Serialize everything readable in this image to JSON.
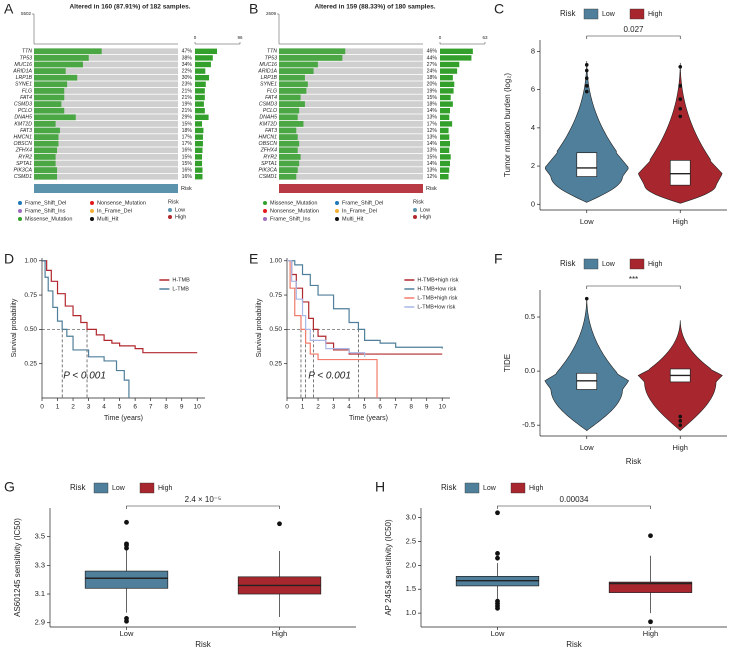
{
  "chart_data": [
    {
      "type": "oncoplot",
      "panel": "A",
      "title": "Altered in 160 (87.91%) of 182 samples.",
      "tmb_ylim": [
        0,
        5502
      ],
      "tmb_yticks": [
        5502
      ],
      "freq_xlim": [
        0,
        96
      ],
      "freq_xticks": [
        0,
        96
      ],
      "genes": [
        "TTN",
        "TP53",
        "MUC16",
        "ARID1A",
        "LRP1B",
        "SYNE1",
        "FLG",
        "FAT4",
        "CSMD3",
        "PCLO",
        "DNAH5",
        "KMT2D",
        "FAT3",
        "HMCN1",
        "OBSCN",
        "ZFHX4",
        "RYR2",
        "SPTA1",
        "PIK3CA",
        "CSMD1"
      ],
      "values": [
        47,
        38,
        34,
        22,
        30,
        23,
        21,
        21,
        19,
        21,
        29,
        15,
        18,
        17,
        17,
        16,
        15,
        15,
        16,
        16
      ],
      "value_labels": [
        "47%",
        "38%",
        "34%",
        "22%",
        "30%",
        "23%",
        "21%",
        "21%",
        "19%",
        "21%",
        "29%",
        "15%",
        "18%",
        "17%",
        "17%",
        "16%",
        "15%",
        "15%",
        "16%",
        "16%"
      ],
      "bar_color": "#33a02c",
      "row_color": "#cfcfcf",
      "annotation_label": "Risk",
      "annotation_color": "#5b93ad",
      "mutation_types": [
        {
          "name": "Frame_Shift_Del",
          "color": "#1f78b4"
        },
        {
          "name": "Frame_Shift_Ins",
          "color": "#9e6cc0"
        },
        {
          "name": "Missense_Mutation",
          "color": "#33a02c"
        },
        {
          "name": "Nonsense_Mutation",
          "color": "#e31a1c"
        },
        {
          "name": "In_Frame_Del",
          "color": "#f2b134"
        },
        {
          "name": "Multi_Hit",
          "color": "#111111"
        }
      ],
      "risk_legend": {
        "title": "Risk",
        "groups": [
          {
            "name": "Low",
            "color": "#5b93ad"
          },
          {
            "name": "High",
            "color": "#b0282e"
          }
        ]
      }
    },
    {
      "type": "oncoplot",
      "panel": "B",
      "title": "Altered in 159 (88.33%) of 180 samples.",
      "tmb_ylim": [
        0,
        2609
      ],
      "tmb_yticks": [
        2609
      ],
      "freq_xlim": [
        0,
        63
      ],
      "freq_xticks": [
        0,
        63
      ],
      "genes": [
        "TTN",
        "TP53",
        "MUC16",
        "ARID1A",
        "LRP1B",
        "SYNE1",
        "FLG",
        "FAT4",
        "CSMD3",
        "PCLO",
        "DNAH5",
        "KMT2D",
        "FAT3",
        "HMCN1",
        "OBSCN",
        "ZFHX4",
        "RYR2",
        "SPTA1",
        "PIK3CA",
        "CSMD1"
      ],
      "values": [
        46,
        44,
        27,
        24,
        18,
        20,
        19,
        15,
        18,
        14,
        13,
        17,
        12,
        13,
        14,
        13,
        15,
        14,
        13,
        12
      ],
      "value_labels": [
        "46%",
        "44%",
        "27%",
        "24%",
        "18%",
        "20%",
        "19%",
        "15%",
        "18%",
        "14%",
        "13%",
        "17%",
        "12%",
        "13%",
        "14%",
        "13%",
        "15%",
        "14%",
        "13%",
        "12%"
      ],
      "bar_color": "#33a02c",
      "row_color": "#cfcfcf",
      "annotation_label": "Risk",
      "annotation_color": "#b83a45",
      "mutation_types": [
        {
          "name": "Missense_Mutation",
          "color": "#33a02c"
        },
        {
          "name": "Nonsense_Mutation",
          "color": "#e31a1c"
        },
        {
          "name": "Frame_Shift_Ins",
          "color": "#9e6cc0"
        },
        {
          "name": "Frame_Shift_Del",
          "color": "#1f78b4"
        },
        {
          "name": "In_Frame_Del",
          "color": "#f2b134"
        },
        {
          "name": "Multi_Hit",
          "color": "#111111"
        }
      ],
      "risk_legend": {
        "title": "Risk",
        "groups": [
          {
            "name": "Low",
            "color": "#5b93ad"
          },
          {
            "name": "High",
            "color": "#b0282e"
          }
        ]
      }
    },
    {
      "type": "violin",
      "panel": "C",
      "legend_title": "Risk",
      "ylabel": "Tumor mutation burden (log₂)",
      "categories": [
        "Low",
        "High"
      ],
      "ylim": [
        -0.3,
        8.6
      ],
      "yticks": [
        0,
        2,
        4,
        6,
        8
      ],
      "pvalue": "0.027",
      "series": [
        {
          "name": "Low",
          "color": "#4f7f9a",
          "stats": {
            "min": 0.1,
            "q1": 1.45,
            "median": 1.9,
            "q3": 2.7,
            "max": 7.5,
            "outliers": [
              5.9,
              6.2,
              6.6,
              7.0,
              7.3
            ]
          }
        },
        {
          "name": "High",
          "color": "#a8272e",
          "stats": {
            "min": 0.05,
            "q1": 1.0,
            "median": 1.6,
            "q3": 2.3,
            "max": 7.4,
            "outliers": [
              4.6,
              5.0,
              5.5,
              6.2,
              7.2
            ]
          }
        }
      ]
    },
    {
      "type": "survival",
      "panel": "D",
      "xlabel": "Time (years)",
      "ylabel": "Survival probability",
      "xlim": [
        0,
        10.5
      ],
      "xticks": [
        0,
        1,
        2,
        3,
        4,
        5,
        6,
        7,
        8,
        9,
        10
      ],
      "ylim": [
        0,
        1.02
      ],
      "yticks": [
        0.25,
        {
          "value": 0.5,
          "label": "0.50"
        },
        0.75,
        {
          "value": 1,
          "label": "1.00"
        }
      ],
      "annotation": "P < 0.001",
      "median_level": 0.5,
      "series": [
        {
          "name": "H-TMB",
          "color": "#b0282e",
          "median": 2.9,
          "x": [
            0,
            0.3,
            0.6,
            1,
            1.5,
            2,
            2.5,
            2.9,
            3.5,
            4,
            4.5,
            5,
            6,
            6.5,
            10
          ],
          "values": [
            1,
            0.93,
            0.85,
            0.76,
            0.67,
            0.6,
            0.55,
            0.5,
            0.46,
            0.42,
            0.4,
            0.38,
            0.36,
            0.33,
            0.33
          ]
        },
        {
          "name": "L-TMB",
          "color": "#4f7f9a",
          "median": 1.3,
          "x": [
            0,
            0.2,
            0.4,
            0.7,
            1,
            1.3,
            1.6,
            2,
            3,
            4,
            4.8,
            5.3,
            5.6
          ],
          "values": [
            1,
            0.88,
            0.78,
            0.66,
            0.56,
            0.5,
            0.45,
            0.35,
            0.3,
            0.27,
            0.2,
            0.13,
            0
          ]
        }
      ]
    },
    {
      "type": "survival",
      "panel": "E",
      "xlabel": "Time (years)",
      "ylabel": "Survival probability",
      "xlim": [
        0,
        10.5
      ],
      "xticks": [
        0,
        1,
        2,
        3,
        4,
        5,
        6,
        7,
        8,
        9,
        10
      ],
      "ylim": [
        0,
        1.02
      ],
      "yticks": [
        0.25,
        {
          "value": 0.5,
          "label": "0.50"
        },
        0.75,
        {
          "value": 1,
          "label": "1.00"
        }
      ],
      "annotation": "P < 0.001",
      "median_level": 0.5,
      "series": [
        {
          "name": "H-TMB+high risk",
          "color": "#b0282e",
          "median": 1.7,
          "x": [
            0,
            0.3,
            0.6,
            1,
            1.4,
            1.7,
            2,
            2.5,
            3,
            4,
            10
          ],
          "values": [
            1,
            0.9,
            0.8,
            0.7,
            0.58,
            0.5,
            0.45,
            0.4,
            0.35,
            0.32,
            0.32
          ]
        },
        {
          "name": "H-TMB+low risk",
          "color": "#4f7f9a",
          "median": 4.6,
          "x": [
            0,
            0.5,
            1,
            1.5,
            2,
            3,
            4,
            4.6,
            5,
            6,
            7,
            10
          ],
          "values": [
            1,
            0.97,
            0.9,
            0.82,
            0.75,
            0.65,
            0.55,
            0.5,
            0.42,
            0.4,
            0.37,
            0.36
          ]
        },
        {
          "name": "L-TMB+high risk",
          "color": "#f27b6b",
          "median": 0.9,
          "x": [
            0,
            0.2,
            0.5,
            0.9,
            1.2,
            1.5,
            2,
            4,
            5.6,
            5.8
          ],
          "values": [
            1,
            0.8,
            0.6,
            0.5,
            0.4,
            0.32,
            0.28,
            0.28,
            0.28,
            0
          ]
        },
        {
          "name": "L-TMB+low risk",
          "color": "#a9b8e6",
          "median": 1.2,
          "x": [
            0,
            0.3,
            0.6,
            1,
            1.2,
            1.5,
            2.5,
            4,
            5
          ],
          "values": [
            1,
            0.85,
            0.72,
            0.6,
            0.5,
            0.42,
            0.36,
            0.33,
            0.3
          ]
        }
      ]
    },
    {
      "type": "violin",
      "panel": "F",
      "legend_title": "Risk",
      "ylabel": "TIDE",
      "xlabel": "Risk",
      "categories": [
        "Low",
        "High"
      ],
      "ylim": [
        -0.6,
        0.75
      ],
      "yticks": [
        -0.5,
        {
          "value": 0,
          "label": "0.0"
        },
        0.5
      ],
      "pvalue": "***",
      "series": [
        {
          "name": "Low",
          "color": "#4f7f9a",
          "stats": {
            "min": -0.55,
            "q1": -0.17,
            "median": -0.09,
            "q3": -0.02,
            "max": 0.68,
            "outliers": [
              0.67
            ]
          }
        },
        {
          "name": "High",
          "color": "#a8272e",
          "stats": {
            "min": -0.55,
            "q1": -0.1,
            "median": -0.04,
            "q3": 0.02,
            "max": 0.47,
            "outliers": [
              -0.42,
              -0.46,
              -0.5
            ]
          }
        }
      ]
    },
    {
      "type": "box",
      "panel": "G",
      "legend_title": "Risk",
      "ylabel": "AS601245 sensitivity (IC50)",
      "xlabel": "Risk",
      "categories": [
        "Low",
        "High"
      ],
      "ylim": [
        2.87,
        3.7
      ],
      "yticks": [
        2.9,
        3.1,
        3.3,
        3.5
      ],
      "pvalue": "2.4 × 10⁻⁵",
      "series": [
        {
          "name": "Low",
          "color": "#4f7f9a",
          "stats": {
            "min": 2.97,
            "q1": 3.14,
            "median": 3.21,
            "q3": 3.26,
            "max": 3.41,
            "outliers": [
              3.6,
              3.45,
              3.44,
              3.42,
              2.93,
              2.91
            ]
          }
        },
        {
          "name": "High",
          "color": "#a8272e",
          "stats": {
            "min": 2.94,
            "q1": 3.1,
            "median": 3.16,
            "q3": 3.22,
            "max": 3.4,
            "outliers": [
              3.59
            ]
          }
        }
      ]
    },
    {
      "type": "box",
      "panel": "H",
      "legend_title": "Risk",
      "ylabel": "AP 24534 sensitivity (IC50)",
      "xlabel": "Risk",
      "categories": [
        "Low",
        "High"
      ],
      "ylim": [
        0.71,
        3.2
      ],
      "yticks": [
        {
          "value": 1,
          "label": "1.0"
        },
        1.5,
        {
          "value": 2,
          "label": "2.0"
        },
        2.5,
        {
          "value": 3,
          "label": "3.0"
        }
      ],
      "pvalue": "0.00034",
      "series": [
        {
          "name": "Low",
          "color": "#4f7f9a",
          "stats": {
            "min": 1.3,
            "q1": 1.57,
            "median": 1.68,
            "q3": 1.77,
            "max": 2.05,
            "outliers": [
              3.1,
              2.25,
              2.15,
              1.25,
              1.2,
              1.15,
              1.1
            ]
          }
        },
        {
          "name": "High",
          "color": "#a8272e",
          "stats": {
            "min": 1.0,
            "q1": 1.43,
            "median": 1.62,
            "q3": 1.65,
            "max": 2.2,
            "outliers": [
              2.62,
              0.82
            ]
          }
        }
      ]
    }
  ]
}
